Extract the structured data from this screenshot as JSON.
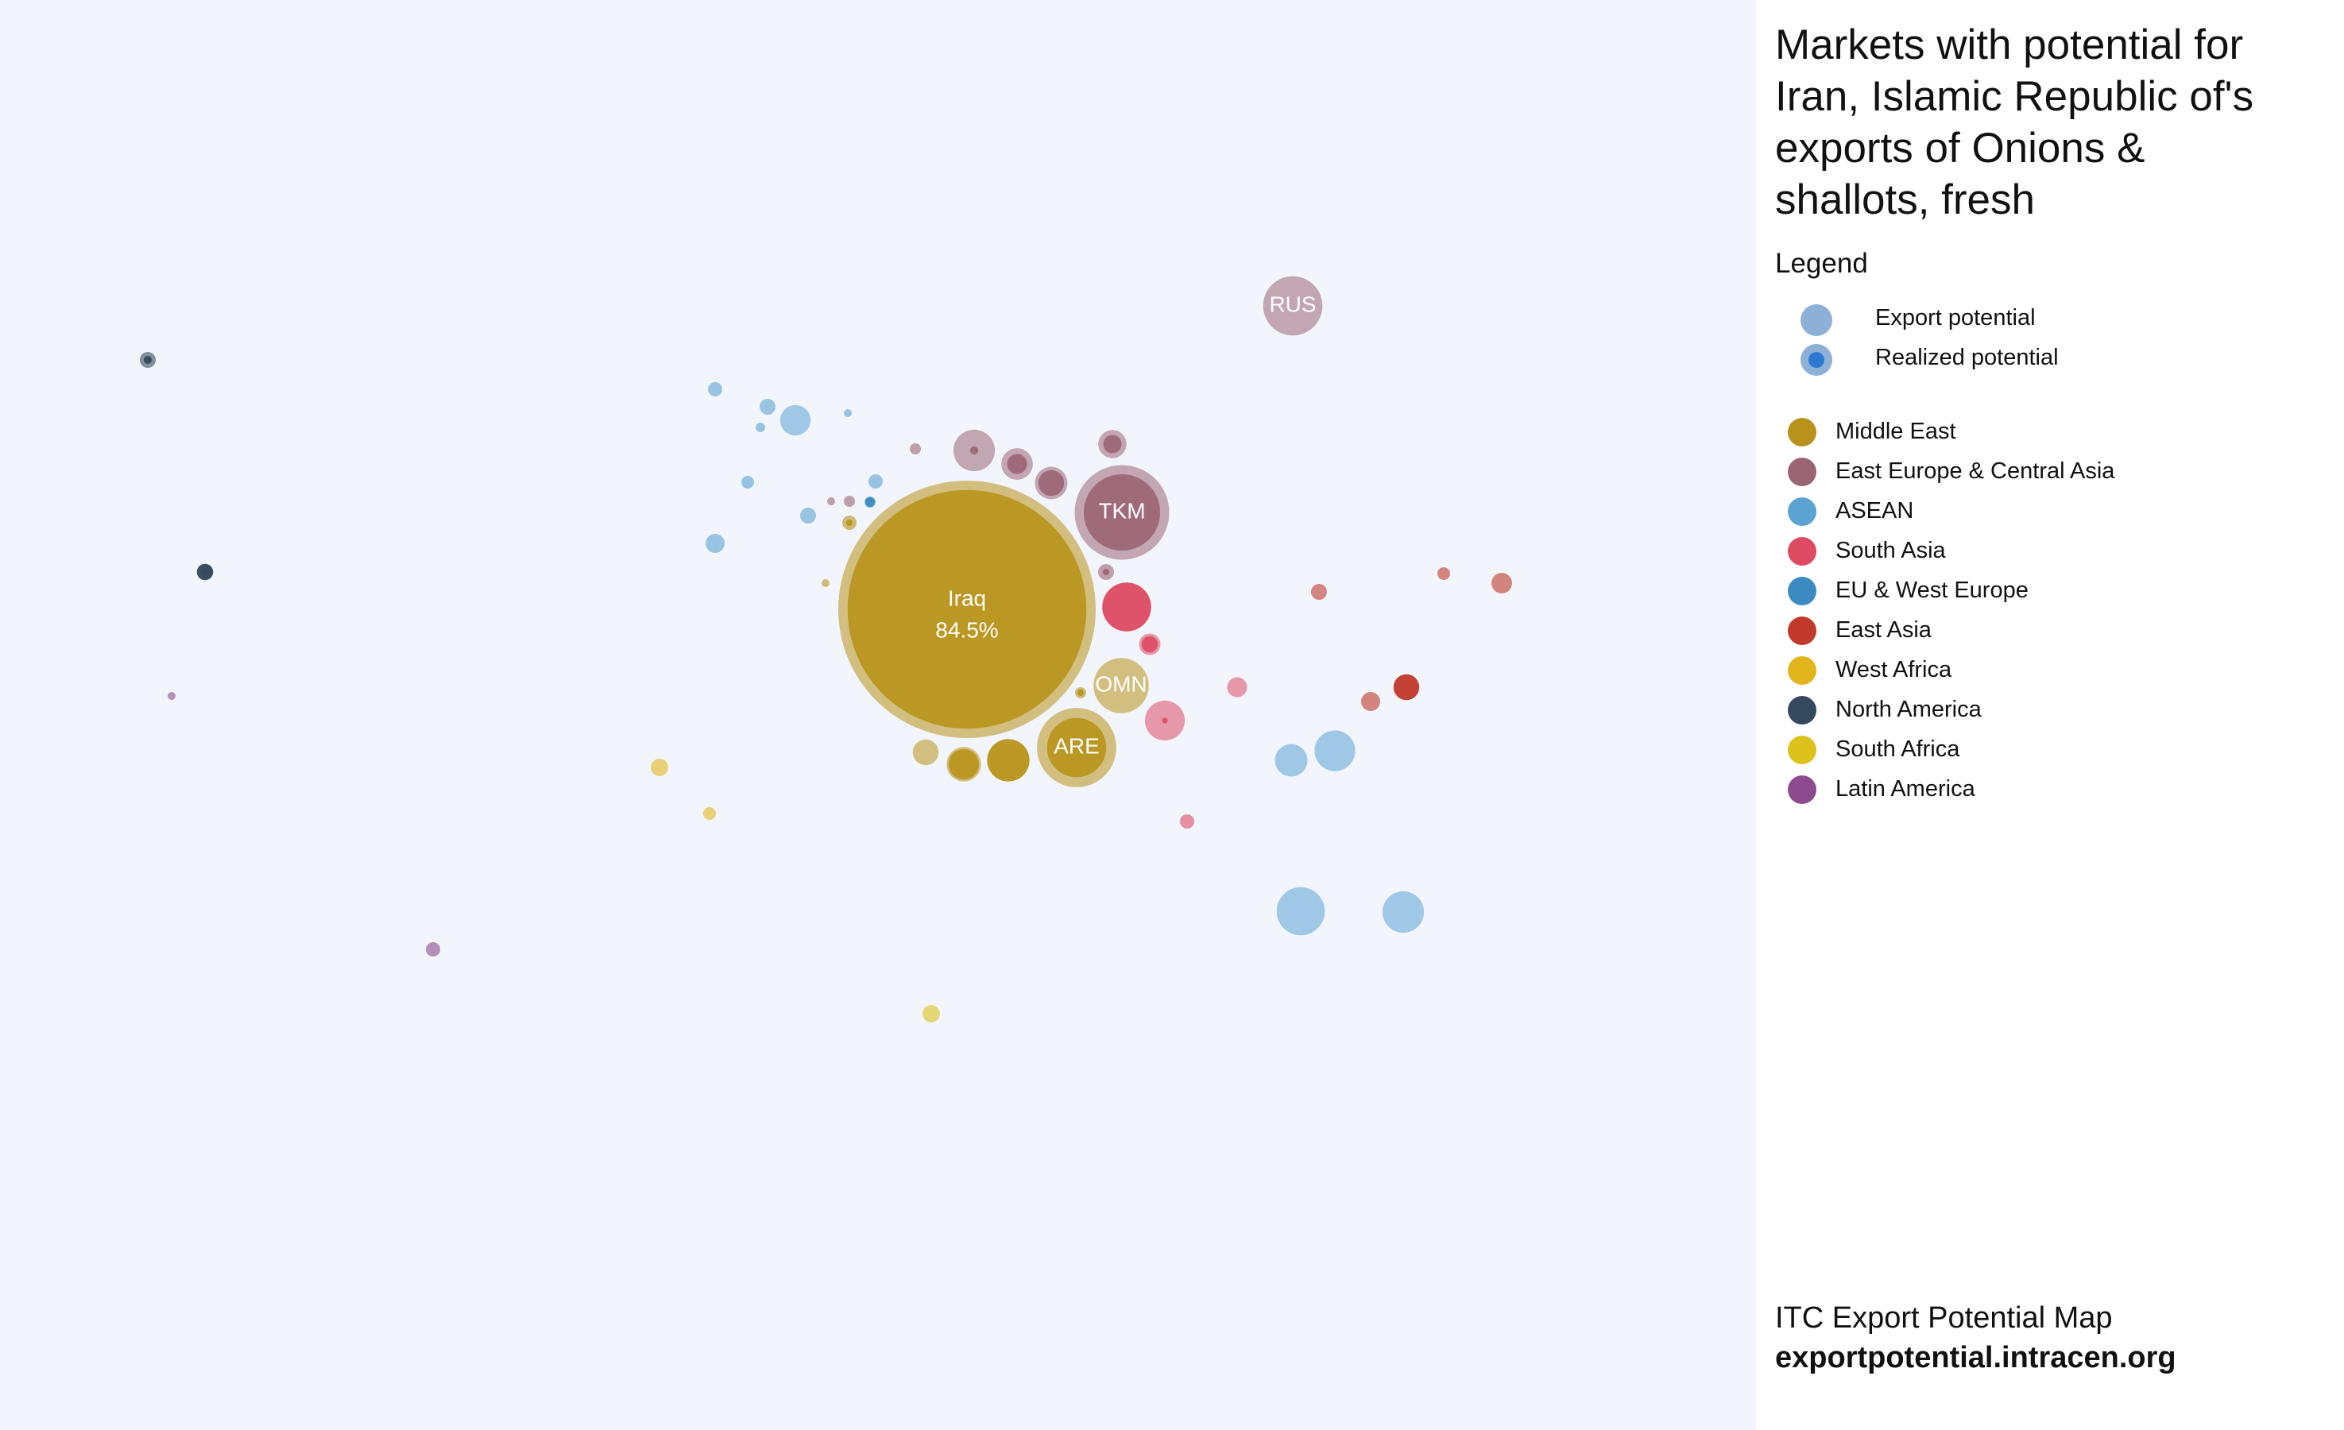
{
  "panel": {
    "title": "Markets with potential for Iran, Islamic Republic of's exports of Onions & shallots, fresh",
    "legend_heading": "Legend",
    "export_potential_label": "Export potential",
    "realized_potential_label": "Realized potential",
    "export_potential_color": "#8fb0d6",
    "realized_potential_color": "#2e7ad1",
    "footer_line1": "ITC Export Potential Map",
    "footer_line2": "exportpotential.intracen.org"
  },
  "regions": [
    {
      "name": "Middle East",
      "color": "#b8921a"
    },
    {
      "name": "East Europe & Central Asia",
      "color": "#9b6473"
    },
    {
      "name": "ASEAN",
      "color": "#5aa3d2"
    },
    {
      "name": "South Asia",
      "color": "#dd4b62"
    },
    {
      "name": "EU & West Europe",
      "color": "#3b8bc2"
    },
    {
      "name": "East Asia",
      "color": "#c0392b"
    },
    {
      "name": "West Africa",
      "color": "#e2b51d"
    },
    {
      "name": "North America",
      "color": "#34495e"
    },
    {
      "name": "South Africa",
      "color": "#dcc21a"
    },
    {
      "name": "Latin America",
      "color": "#8e4a8e"
    }
  ],
  "chart_data": {
    "type": "bubble",
    "title": "Markets with potential for Iran, Islamic Republic of's exports of Onions & shallots, fresh",
    "size_encoding": "export potential (outer circle) and realized potential (inner circle)",
    "labeled_markets": [
      {
        "label": "Iraq",
        "sublabel": "84.5%",
        "region": "Middle East"
      },
      {
        "label": "TKM",
        "region": "East Europe & Central Asia"
      },
      {
        "label": "RUS",
        "region": "East Europe & Central Asia"
      },
      {
        "label": "OMN",
        "region": "Middle East"
      },
      {
        "label": "ARE",
        "region": "Middle East"
      }
    ],
    "bubbles": [
      {
        "label": "Iraq",
        "sublabel": "84.5%",
        "region": "Middle East",
        "potential": 100,
        "realized": 86
      },
      {
        "label": "TKM",
        "region": "East Europe & Central Asia",
        "potential": 13.5,
        "realized": 8.8
      },
      {
        "label": "RUS",
        "region": "East Europe & Central Asia",
        "potential": 5.3,
        "realized": 0
      },
      {
        "label": "OMN",
        "region": "Middle East",
        "potential": 4.6,
        "realized": 0
      },
      {
        "label": "ARE",
        "region": "Middle East",
        "potential": 9.5,
        "realized": 5.3
      },
      {
        "region": "South Asia",
        "potential": 3.6,
        "realized": 3.6
      },
      {
        "region": "ASEAN",
        "potential": 3.5,
        "realized": 0
      },
      {
        "region": "ASEAN",
        "potential": 2.5,
        "realized": 0
      },
      {
        "region": "ASEAN",
        "potential": 2.6,
        "realized": 0
      },
      {
        "region": "ASEAN",
        "potential": 1.6,
        "realized": 0
      },
      {
        "region": "ASEAN",
        "potential": 1.4,
        "realized": 0
      },
      {
        "region": "Middle East",
        "potential": 2.7,
        "realized": 2.7
      },
      {
        "region": "Middle East",
        "potential": 1.8,
        "realized": 1.4
      },
      {
        "region": "Middle East",
        "potential": 1.0,
        "realized": 0
      },
      {
        "region": "South Asia",
        "potential": 2.4,
        "realized": 0.05
      },
      {
        "region": "East Europe & Central Asia",
        "potential": 2.6,
        "realized": 0.1
      },
      {
        "region": "East Europe & Central Asia",
        "potential": 1.5,
        "realized": 0.6
      },
      {
        "region": "East Europe & Central Asia",
        "potential": 1.6,
        "realized": 1.0
      },
      {
        "region": "East Europe & Central Asia",
        "potential": 1.2,
        "realized": 0.5
      },
      {
        "region": "East Asia",
        "potential": 1.0,
        "realized": 1.0
      },
      {
        "region": "South Asia",
        "potential": 0.7,
        "realized": 0.4
      },
      {
        "region": "South Asia",
        "potential": 0.6,
        "realized": 0
      },
      {
        "region": "North America",
        "potential": 0.4,
        "realized": 0.4
      }
    ]
  }
}
